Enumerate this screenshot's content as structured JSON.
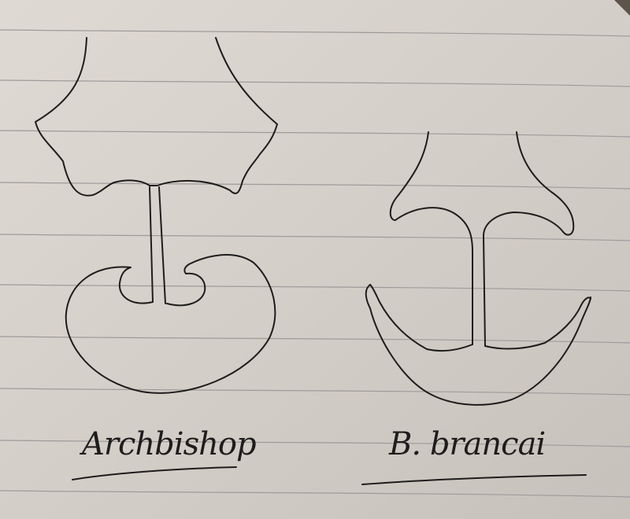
{
  "paper": {
    "color": "#dcd6cf",
    "shadow_color": "#5a5046",
    "rule_line_color": "#9d9b9a",
    "ink_color": "#1e1c1c"
  },
  "sketches": [
    {
      "label": "Archbishop"
    },
    {
      "label": "B. brancai"
    }
  ]
}
